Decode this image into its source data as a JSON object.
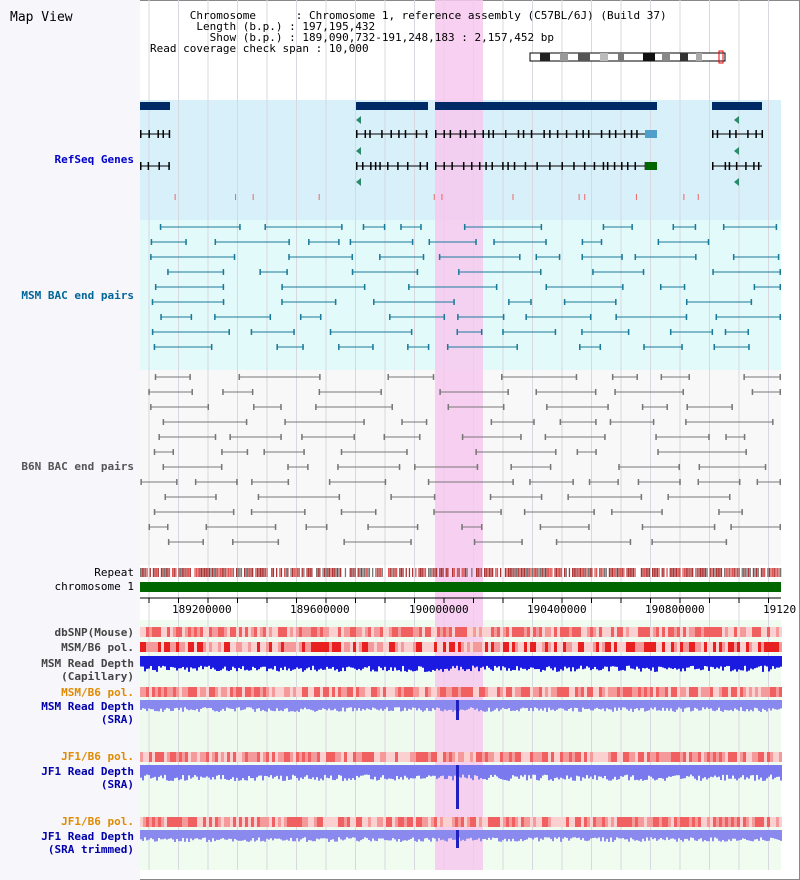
{
  "title": "Map View",
  "info": {
    "chromosome_key": "Chromosome",
    "chromosome_val": "Chromosome 1, reference assembly (C57BL/6J) (Build 37)",
    "length_key": "Length (b.p.)",
    "length_val": "197,195,432",
    "show_key": "Show (b.p.)",
    "show_val": "189,090,732-191,248,183 : 2,157,452 bp",
    "coverage_key": "Read coverage check span",
    "coverage_val": "10,000"
  },
  "tracks": {
    "refseq": "RefSeq Genes",
    "msm_bac": "MSM BAC end pairs",
    "b6n_bac": "B6N BAC end pairs",
    "repeat": "Repeat",
    "chromosome": "chromosome 1",
    "dbsnp": "dbSNP(Mouse)",
    "msm_b6_pol_1": "MSM/B6 pol.",
    "msm_read_depth_cap_1": "MSM Read Depth",
    "msm_read_depth_cap_2": "(Capillary)",
    "msm_b6_pol_2": "MSM/B6 pol.",
    "msm_read_depth_sra_1": "MSM Read Depth",
    "msm_read_depth_sra_2": "(SRA)",
    "jf1_b6_pol_1": "JF1/B6 pol.",
    "jf1_read_depth_sra_1": "JF1 Read Depth",
    "jf1_read_depth_sra_2": "(SRA)",
    "jf1_b6_pol_2": "JF1/B6 pol.",
    "jf1_read_depth_trim_1": "JF1 Read Depth",
    "jf1_read_depth_trim_2": "(SRA trimmed)"
  },
  "axis": {
    "ticks": [
      "189200000",
      "189600000",
      "190000000",
      "190400000",
      "190800000",
      "19120"
    ]
  },
  "colors": {
    "refseq_label": "#0000cc",
    "msm_label": "#006699",
    "b6n_label": "#555555",
    "orange_label": "#e08a00",
    "blue_label": "#0000aa",
    "highlight": "#f7c8ee",
    "refseq_bg": "#d8f0fa",
    "msm_bg": "#e2fafa",
    "gene_dark": "#002a66",
    "chrom_green": "#006600"
  }
}
